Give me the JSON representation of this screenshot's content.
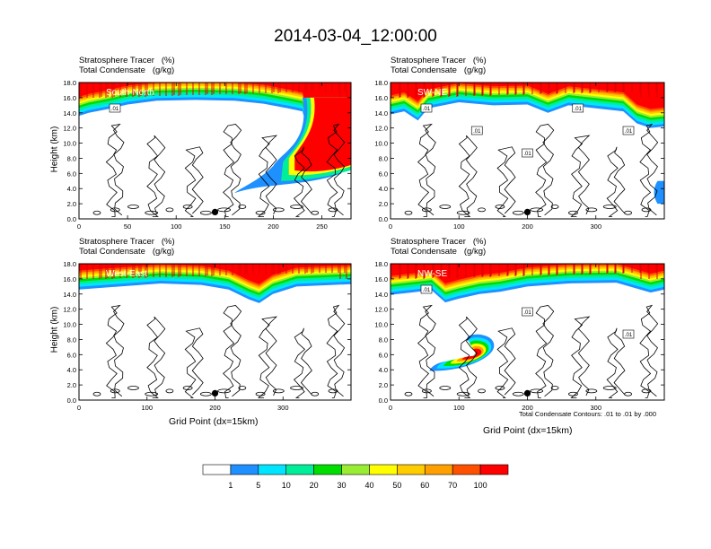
{
  "title": "2014-03-04_12:00:00",
  "palette": [
    "#ffffff",
    "#1e90ff",
    "#00e5ff",
    "#00ee99",
    "#00dd00",
    "#99ee33",
    "#ffff00",
    "#ffcc00",
    "#ffa000",
    "#ff5000",
    "#ff0000"
  ],
  "colorbar": {
    "labels": [
      "1",
      "5",
      "10",
      "20",
      "30",
      "40",
      "50",
      "60",
      "70",
      "100"
    ]
  },
  "panels": [
    {
      "id": "south-north",
      "line1": "Stratosphere Tracer   (%)",
      "line2": "Total Condensate   (g/kg)",
      "name": "South-North",
      "ylabel": "Height (km)",
      "xlabel": "",
      "yticks": [
        "0.0",
        "2.0",
        "4.0",
        "6.0",
        "8.0",
        "10.0",
        "12.0",
        "14.0",
        "16.0",
        "18.0"
      ],
      "xticks": [
        "0",
        "50",
        "100",
        "150",
        "200",
        "250"
      ],
      "xmax": 280,
      "marker_x": 140,
      "contour_labels": [
        ".01"
      ]
    },
    {
      "id": "sw-ne",
      "line1": "Stratosphere Tracer   (%)",
      "line2": "Total Condensate   (g/kg)",
      "name": "SW-NE",
      "ylabel": "",
      "xlabel": "",
      "yticks": [
        "0.0",
        "2.0",
        "4.0",
        "6.0",
        "8.0",
        "10.0",
        "12.0",
        "14.0",
        "16.0",
        "18.0"
      ],
      "xticks": [
        "0",
        "100",
        "200",
        "300"
      ],
      "xmax": 400,
      "marker_x": 200,
      "contour_labels": [
        ".01",
        ".01",
        ".01",
        ".01",
        ".01"
      ]
    },
    {
      "id": "west-east",
      "line1": "Stratosphere Tracer   (%)",
      "line2": "Total Condensate   (g/kg)",
      "name": "West-East",
      "ylabel": "Height (km)",
      "xlabel": "Grid Point (dx=15km)",
      "yticks": [
        "0.0",
        "2.0",
        "4.0",
        "6.0",
        "8.0",
        "10.0",
        "12.0",
        "14.0",
        "16.0",
        "18.0"
      ],
      "xticks": [
        "0",
        "100",
        "200",
        "300"
      ],
      "xmax": 400,
      "marker_x": 200,
      "contour_labels": []
    },
    {
      "id": "nw-se",
      "line1": "Stratosphere Tracer   (%)",
      "line2": "Total Condensate   (g/kg)",
      "name": "NW-SE",
      "ylabel": "",
      "xlabel": "Grid Point (dx=15km)",
      "yticks": [
        "0.0",
        "2.0",
        "4.0",
        "6.0",
        "8.0",
        "10.0",
        "12.0",
        "14.0",
        "16.0",
        "18.0"
      ],
      "xticks": [
        "0",
        "100",
        "200",
        "300"
      ],
      "xmax": 400,
      "marker_x": 200,
      "contour_labels": [
        ".01",
        ".01",
        ".01"
      ]
    }
  ],
  "contour_note": "Total Condensate Contours: .01 to .01 by .000",
  "chart_data": [
    {
      "type": "heatmap",
      "title": "South-North",
      "subtitle": "Stratosphere Tracer   (%) / Total Condensate   (g/kg)",
      "ylabel": "Height (km)",
      "xlim": [
        0,
        280
      ],
      "ylim": [
        0,
        18
      ],
      "color_levels": [
        1,
        5,
        10,
        20,
        30,
        40,
        50,
        60,
        70,
        100
      ],
      "tracer_top_km": [
        {
          "x": 0,
          "bottom": 14.0
        },
        {
          "x": 20,
          "bottom": 14.3
        },
        {
          "x": 50,
          "bottom": 15.3
        },
        {
          "x": 100,
          "bottom": 15.9
        },
        {
          "x": 140,
          "bottom": 15.8
        },
        {
          "x": 180,
          "bottom": 15.5
        },
        {
          "x": 220,
          "bottom": 14.8
        },
        {
          "x": 240,
          "bottom": 13.5
        },
        {
          "x": 280,
          "bottom": 13.5
        }
      ],
      "intrusion": {
        "x_range": [
          140,
          280
        ],
        "height_range_km": [
          3.5,
          15.5
        ]
      },
      "contour_value": 0.01,
      "marker": {
        "x": 140,
        "height_km": 0.9
      }
    },
    {
      "type": "heatmap",
      "title": "SW-NE",
      "subtitle": "Stratosphere Tracer   (%) / Total Condensate   (g/kg)",
      "ylabel": "",
      "xlim": [
        0,
        400
      ],
      "ylim": [
        0,
        18
      ],
      "color_levels": [
        1,
        5,
        10,
        20,
        30,
        40,
        50,
        60,
        70,
        100
      ],
      "tracer_top_km": [
        {
          "x": 0,
          "bottom": 14.0
        },
        {
          "x": 50,
          "bottom": 14.3
        },
        {
          "x": 100,
          "bottom": 15.3
        },
        {
          "x": 200,
          "bottom": 15.1
        },
        {
          "x": 300,
          "bottom": 14.5
        },
        {
          "x": 350,
          "bottom": 13.5
        },
        {
          "x": 400,
          "bottom": 12.0
        }
      ],
      "contour_value": 0.01,
      "marker": {
        "x": 200,
        "height_km": 0.9
      }
    },
    {
      "type": "heatmap",
      "title": "West-East",
      "subtitle": "Stratosphere Tracer   (%) / Total Condensate   (g/kg)",
      "ylabel": "Height (km)",
      "xlabel": "Grid Point (dx=15km)",
      "xlim": [
        0,
        400
      ],
      "ylim": [
        0,
        18
      ],
      "color_levels": [
        1,
        5,
        10,
        20,
        30,
        40,
        50,
        60,
        70,
        100
      ],
      "tracer_top_km": [
        {
          "x": 0,
          "bottom": 14.5
        },
        {
          "x": 100,
          "bottom": 15.0
        },
        {
          "x": 180,
          "bottom": 15.3
        },
        {
          "x": 260,
          "bottom": 12.8
        },
        {
          "x": 300,
          "bottom": 15.1
        },
        {
          "x": 400,
          "bottom": 15.4
        }
      ],
      "contour_value": 0.01,
      "marker": {
        "x": 200,
        "height_km": 0.9
      }
    },
    {
      "type": "heatmap",
      "title": "NW-SE",
      "subtitle": "Stratosphere Tracer   (%) / Total Condensate   (g/kg)",
      "ylabel": "",
      "xlabel": "Grid Point (dx=15km)",
      "xlim": [
        0,
        400
      ],
      "ylim": [
        0,
        18
      ],
      "color_levels": [
        1,
        5,
        10,
        20,
        30,
        40,
        50,
        60,
        70,
        100
      ],
      "tracer_top_km": [
        {
          "x": 0,
          "bottom": 14.0
        },
        {
          "x": 100,
          "bottom": 13.2
        },
        {
          "x": 200,
          "bottom": 15.0
        },
        {
          "x": 300,
          "bottom": 15.3
        },
        {
          "x": 400,
          "bottom": 14.5
        }
      ],
      "intrusion": {
        "x_range": [
          80,
          160
        ],
        "height_range_km": [
          3.5,
          8.5
        ]
      },
      "contour_value": 0.01,
      "marker": {
        "x": 200,
        "height_km": 0.9
      }
    }
  ]
}
